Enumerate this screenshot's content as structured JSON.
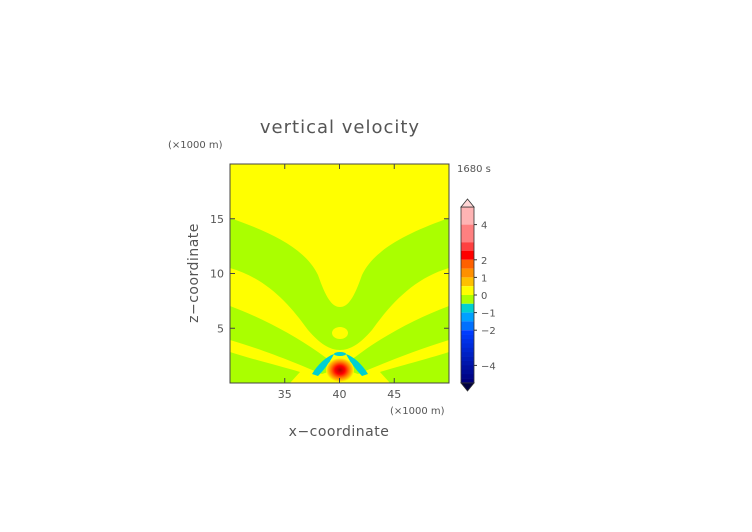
{
  "chart_data": {
    "type": "heatmap",
    "title": "vertical velocity",
    "xlabel": "x−coordinate",
    "ylabel": "z−coordinate",
    "x_units": "(×1000 m)",
    "y_units": "(×1000 m)",
    "time_label": "1680 s",
    "xlim": [
      30,
      50
    ],
    "ylim": [
      0,
      20
    ],
    "x_ticks": [
      35,
      40,
      45
    ],
    "y_ticks": [
      5,
      10,
      15
    ],
    "grid": false,
    "legend": "right",
    "field_features": [
      {
        "region": "background",
        "value_range": [
          0,
          0.5
        ],
        "color": "#ffff00"
      },
      {
        "region": "V-shaped band from (30,15) down to (40,7) up to (50,15)",
        "value_range": [
          -0.5,
          0
        ],
        "color": "#aaff00"
      },
      {
        "region": "lower side bands",
        "value_range": [
          -0.5,
          0
        ],
        "color": "#aaff00"
      },
      {
        "region": "updraft core centered near x=40, z=1",
        "max_value": 4,
        "color": "#ff0000"
      },
      {
        "region": "downdraft lobes near x=38 and x=42, z=1.5",
        "min_value": -1,
        "color": "#00ccff"
      }
    ],
    "colorbar": {
      "labels": [
        "4",
        "2",
        "1",
        "0",
        "−1",
        "−2",
        "−4"
      ],
      "levels": [
        4,
        2,
        1,
        0,
        -1,
        -2,
        -4
      ],
      "extend": "both"
    }
  }
}
